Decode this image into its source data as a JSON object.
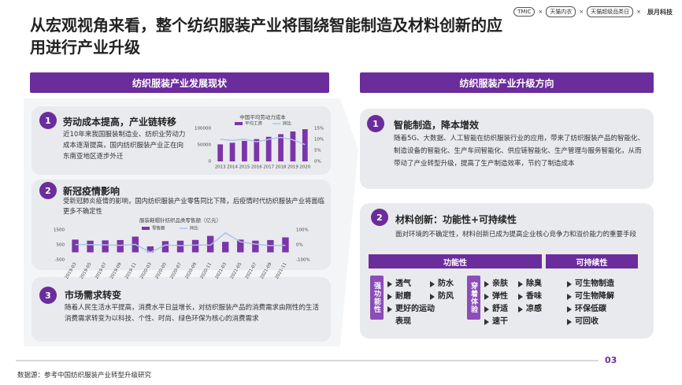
{
  "header": {
    "title": "从宏观视角来看，整个纺织服装产业将围绕智能制造及材料创新的应用进行产业升级",
    "logos": [
      "TMIC",
      "天猫内衣",
      "天猫超级品类日",
      "辰月科技"
    ],
    "separator": "×"
  },
  "left": {
    "heading": "纺织服装产业发展现状",
    "items": [
      {
        "number": "1",
        "title": "劳动成本提高，产业链转移",
        "text": "近10年来我国服装制造业、纺织业劳动力成本逐渐提高，国内纺织服装产业正在向东南亚地区逐步外迁"
      },
      {
        "number": "2",
        "title": "新冠疫情影响",
        "text": "受新冠肺炎疫情的影响，国内纺织服装产业零售同比下降，后疫情时代纺织服装产业将面临更多不确定性"
      },
      {
        "number": "3",
        "title": "市场需求转变",
        "text": "随着人民生活水平提高，消费水平日益增长，对纺织服装产品的消费需求由刚性的生活消费需求转变为以科技、个性、时尚、绿色环保为核心的消费需求"
      }
    ]
  },
  "right": {
    "heading": "纺织服装产业升级方向",
    "items": [
      {
        "number": "1",
        "title": "智能制造，降本增效",
        "text": "随着5G、大数据、人工智能在纺织服装行业的应用，带来了纺织服装产品的智能化、制造设备的智能化、生产车间智能化、供应链智能化、生产管理与服务智能化，从而带动了产业转型升级，提高了生产制造效率，节约了制造成本"
      },
      {
        "number": "2",
        "title": "材料创新：功能性+可持续性",
        "text": "面对环境的不确定性，材料创新已成为提高企业核心竞争力和溢价能力的重要手段"
      }
    ],
    "table": {
      "headers": [
        "功能性",
        "可持续性"
      ],
      "groups": [
        {
          "label": "强功能性",
          "items": [
            "透气",
            "防水",
            "耐磨",
            "防风",
            "更好的运动表现"
          ]
        },
        {
          "label": "穿着体验",
          "items": [
            "亲肤",
            "除臭",
            "弹性",
            "香味",
            "舒适",
            "凉感",
            "速干"
          ]
        }
      ],
      "sustainable": [
        "可生物制造",
        "可生物降解",
        "环保低碳",
        "可回收"
      ]
    }
  },
  "footer": {
    "source": "数据源：参考中国纺织服装产业转型升级研究",
    "page": "03"
  },
  "chart_data": [
    {
      "type": "bar",
      "title": "中国平均劳动力成本",
      "categories": [
        "2013",
        "2014",
        "2015",
        "2016",
        "2017",
        "2018",
        "2019",
        "2020"
      ],
      "series": [
        {
          "name": "平均工资",
          "color": "#7b35a8",
          "values": [
            51483,
            56360,
            62029,
            67569,
            74318,
            82413,
            90501,
            97379
          ]
        },
        {
          "name": "同比",
          "color": "#a9c4ea",
          "axis": "y2",
          "values": [
            10.1,
            9.5,
            10.1,
            8.9,
            10,
            10.9,
            9.8,
            7.6
          ]
        }
      ],
      "ylim": [
        0,
        100000
      ],
      "yticks": [
        0,
        50000,
        100000
      ],
      "y2lim": [
        0,
        15
      ],
      "y2ticks": [
        {
          "value": 0,
          "label": "0%"
        },
        {
          "value": 5,
          "label": "5%"
        },
        {
          "value": 10,
          "label": "10%"
        },
        {
          "value": 15,
          "label": "15%"
        }
      ]
    },
    {
      "type": "bar",
      "title": "服装鞋帽针纺织品类零售额（亿元）",
      "categories": [
        "2019-03",
        "2019-05",
        "2019-07",
        "2019-09",
        "2019-11",
        "2020-03",
        "2020-05",
        "2020-07",
        "2020-09",
        "2020-11",
        "2021-03",
        "2021-05",
        "2021-07",
        "2021-09",
        "2021-11"
      ],
      "series": [
        {
          "name": "零售额",
          "color": "#7b35a8",
          "values": [
            850,
            780,
            800,
            820,
            1050,
            400,
            750,
            780,
            830,
            1100,
            700,
            850,
            780,
            820,
            1000
          ]
        },
        {
          "name": "同比",
          "color": "#a9c4ea",
          "axis": "y2",
          "values": [
            2,
            1,
            0,
            -3,
            3,
            -50,
            -1,
            -5,
            -1,
            -2,
            80,
            20,
            5,
            -5,
            -3
          ]
        }
      ],
      "ylim": [
        -500,
        1500
      ],
      "yticks": [
        -500,
        500,
        1500
      ],
      "y2lim": [
        -100,
        100
      ],
      "y2ticks": [
        {
          "value": -100,
          "label": "-100%"
        },
        {
          "value": 0,
          "label": "0%"
        },
        {
          "value": 100,
          "label": "100%"
        }
      ]
    }
  ]
}
